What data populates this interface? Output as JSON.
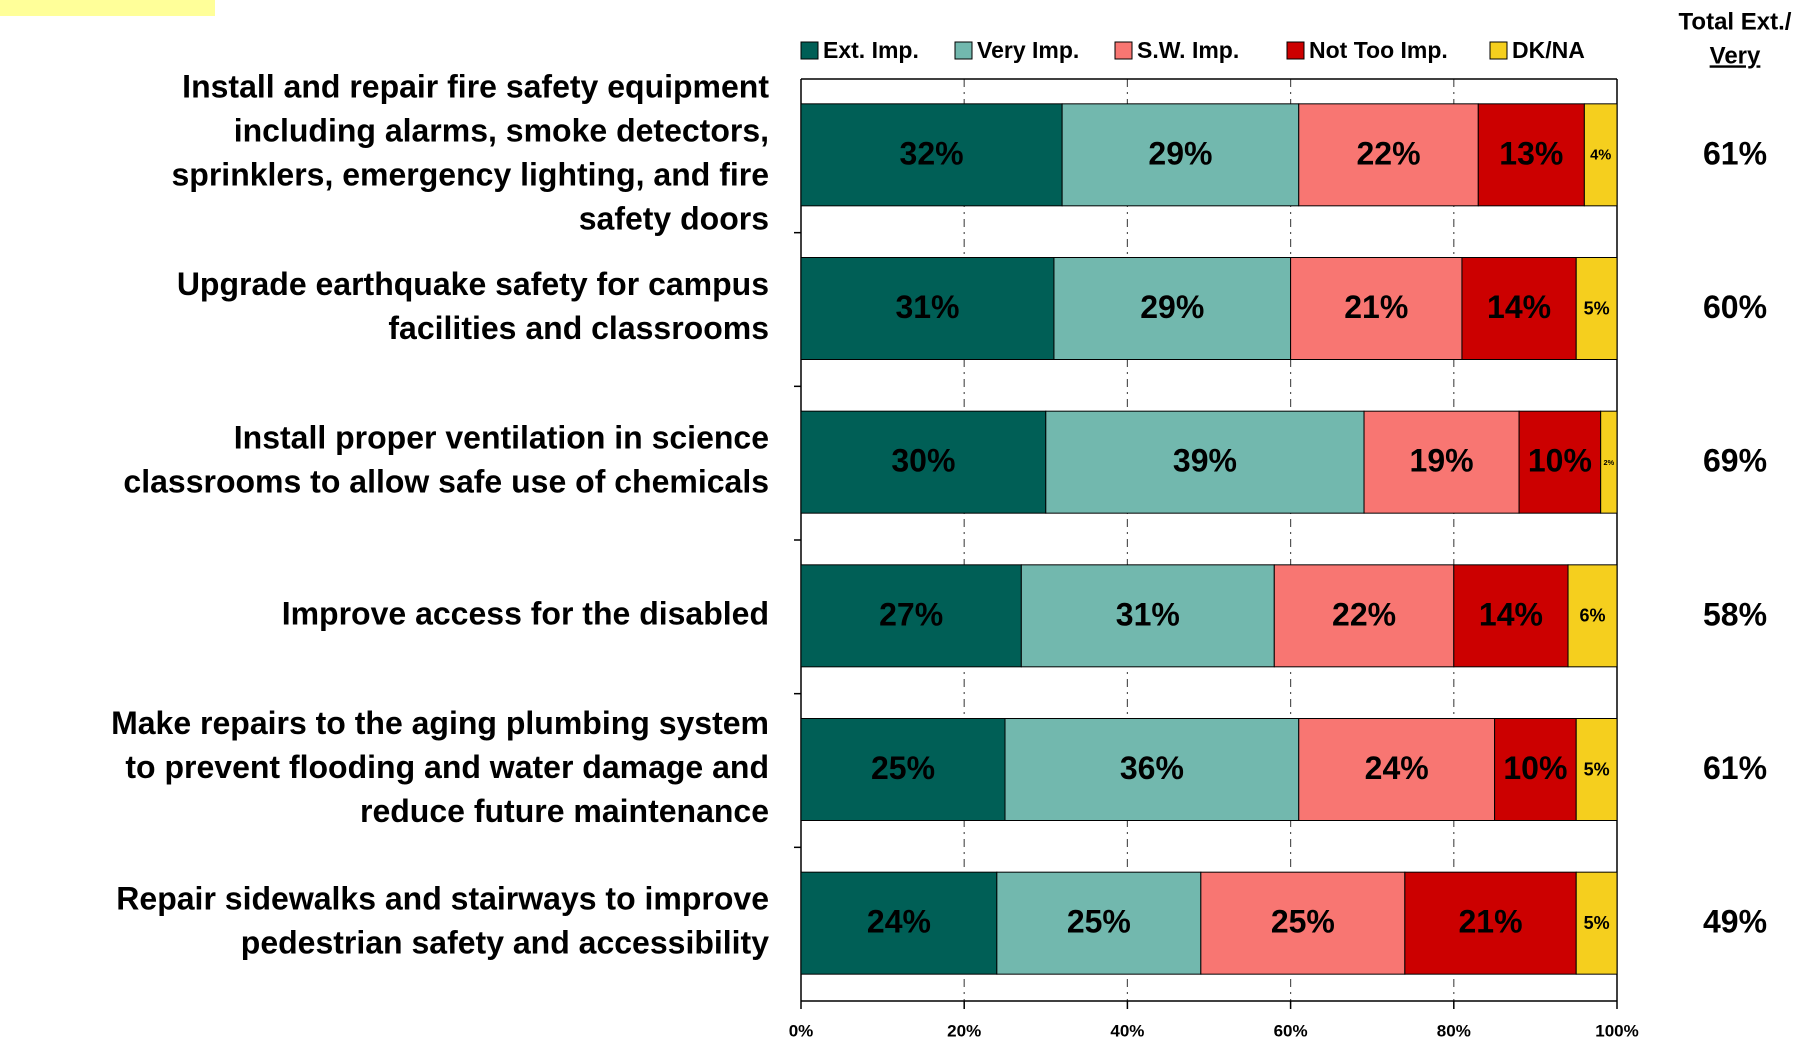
{
  "chart_data": {
    "type": "stacked-bar-horizontal",
    "categories": [
      [
        "Install and repair fire safety equipment",
        "including alarms, smoke detectors,",
        "sprinklers, emergency lighting, and fire",
        "safety doors"
      ],
      [
        "Upgrade earthquake safety for campus",
        "facilities and classrooms"
      ],
      [
        "Install proper ventilation in science",
        "classrooms to allow safe use of chemicals"
      ],
      [
        "Improve access for the disabled"
      ],
      [
        "Make repairs to the aging plumbing system",
        "to prevent flooding and water damage and",
        "reduce future maintenance"
      ],
      [
        "Repair sidewalks and stairways to improve",
        "pedestrian safety and accessibility"
      ]
    ],
    "series": [
      {
        "name": "Ext. Imp.",
        "color": "#005f56",
        "values": [
          32,
          31,
          30,
          27,
          25,
          24
        ],
        "value_labels": [
          "32%",
          "31%",
          "30%",
          "27%",
          "25%",
          "24%"
        ]
      },
      {
        "name": "Very Imp.",
        "color": "#72b8ae",
        "values": [
          29,
          29,
          39,
          31,
          36,
          25
        ],
        "value_labels": [
          "29%",
          "29%",
          "39%",
          "31%",
          "36%",
          "25%"
        ]
      },
      {
        "name": "S.W. Imp.",
        "color": "#f87672",
        "values": [
          22,
          21,
          19,
          22,
          24,
          25
        ],
        "value_labels": [
          "22%",
          "21%",
          "19%",
          "22%",
          "24%",
          "25%"
        ]
      },
      {
        "name": "Not Too Imp.",
        "color": "#cc0000",
        "values": [
          13,
          14,
          10,
          14,
          10,
          21
        ],
        "value_labels": [
          "13%",
          "14%",
          "10%",
          "14%",
          "10%",
          "21%"
        ]
      },
      {
        "name": "DK/NA",
        "color": "#f5cf1e",
        "values": [
          4,
          5,
          2,
          6,
          5,
          5
        ],
        "value_labels": [
          "4%",
          "5%",
          "2%",
          "6%",
          "5%",
          "5%"
        ]
      }
    ],
    "xlim": [
      0,
      100
    ],
    "xticks": [
      {
        "value": 0,
        "label": "0%"
      },
      {
        "value": 20,
        "label": "20%"
      },
      {
        "value": 40,
        "label": "40%"
      },
      {
        "value": 60,
        "label": "60%"
      },
      {
        "value": 80,
        "label": "80%"
      },
      {
        "value": 100,
        "label": "100%"
      }
    ],
    "grid": true,
    "legend": "top",
    "totals_header": [
      "Total Ext./",
      "Very"
    ],
    "totals": {
      "values": [
        61,
        60,
        69,
        58,
        61,
        49
      ],
      "value_labels": [
        "61%",
        "60%",
        "69%",
        "58%",
        "61%",
        "49%"
      ]
    }
  }
}
